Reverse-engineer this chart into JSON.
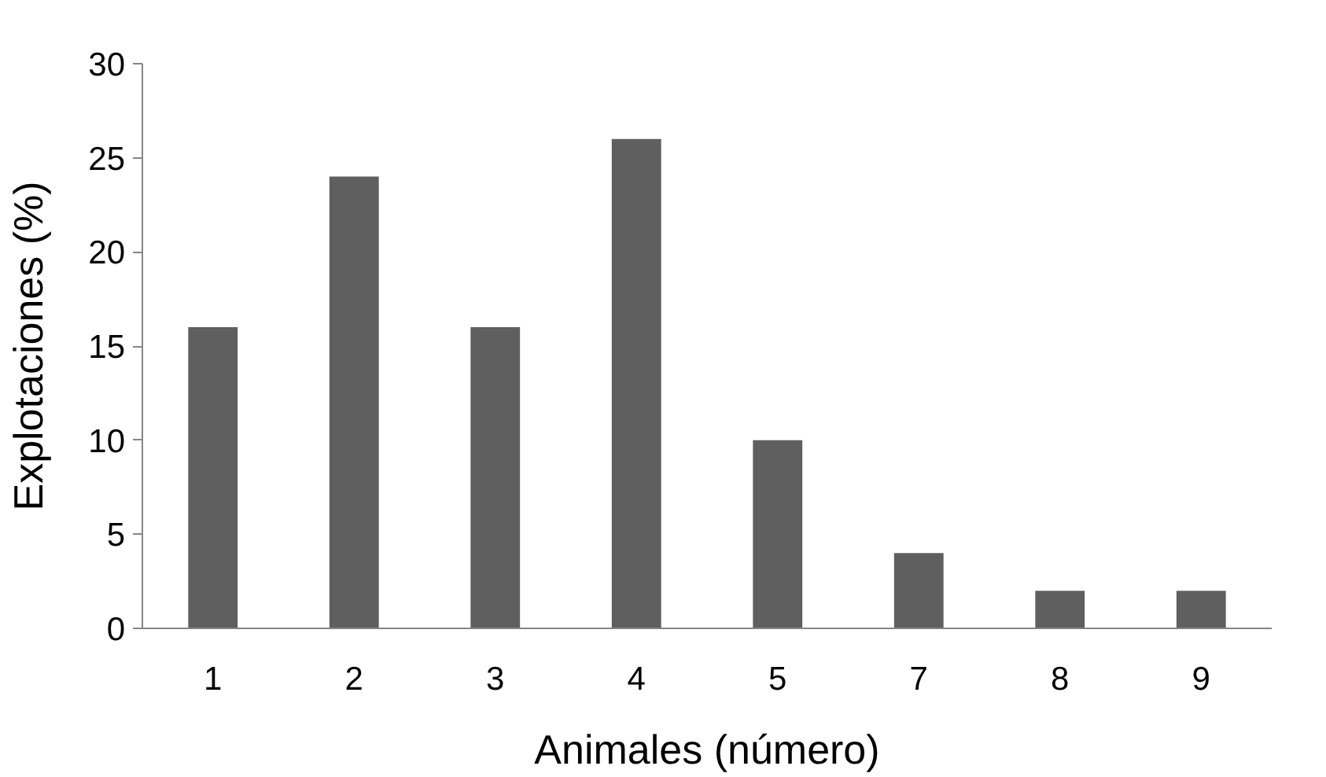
{
  "chart_data": {
    "type": "bar",
    "xlabel": "Animales (número)",
    "ylabel": "Explotaciones (%)",
    "categories": [
      "1",
      "2",
      "3",
      "4",
      "5",
      "7",
      "8",
      "9"
    ],
    "values": [
      16,
      24,
      16,
      26,
      10,
      4,
      2,
      2
    ],
    "color": "#5f5f5f",
    "ylim": [
      0,
      30
    ],
    "yticks": [
      0,
      5,
      10,
      15,
      20,
      25,
      30
    ],
    "grid": false
  }
}
